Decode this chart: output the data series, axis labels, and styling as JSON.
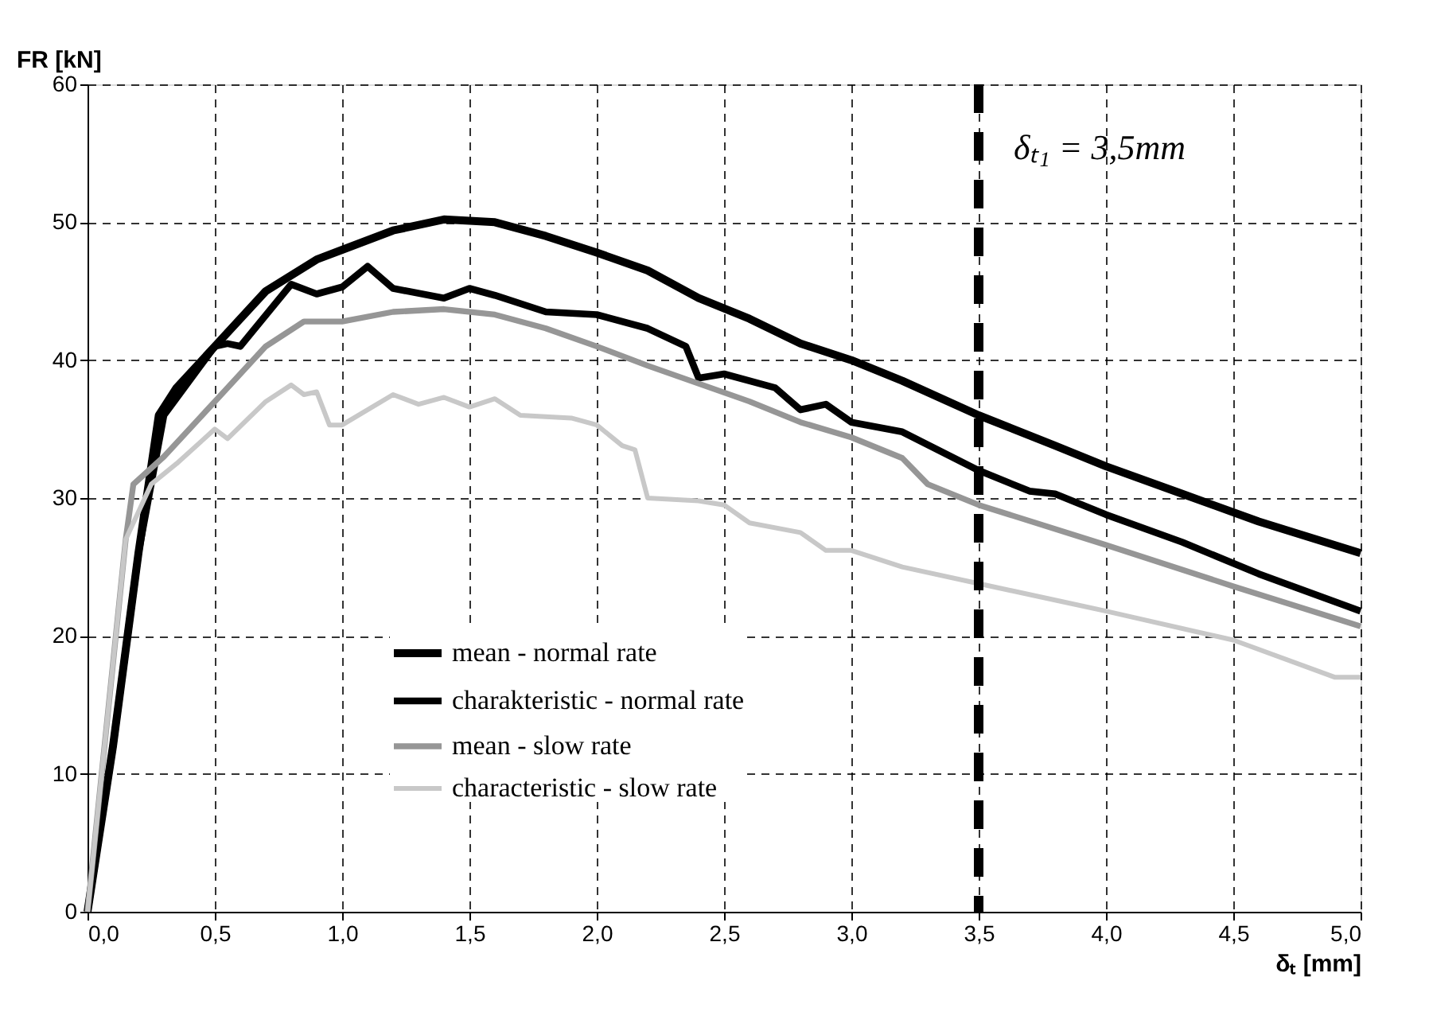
{
  "chart_data": {
    "type": "line",
    "xlabel": "δₜ [mm]",
    "ylabel": "FR [kN]",
    "xlim": [
      0,
      5
    ],
    "ylim": [
      0,
      60
    ],
    "xticks": [
      {
        "value": 0,
        "label": "0,0"
      },
      {
        "value": 0.5,
        "label": "0,5"
      },
      {
        "value": 1,
        "label": "1,0"
      },
      {
        "value": 1.5,
        "label": "1,5"
      },
      {
        "value": 2,
        "label": "2,0"
      },
      {
        "value": 2.5,
        "label": "2,5"
      },
      {
        "value": 3,
        "label": "3,0"
      },
      {
        "value": 3.5,
        "label": "3,5"
      },
      {
        "value": 4,
        "label": "4,0"
      },
      {
        "value": 4.5,
        "label": "4,5"
      },
      {
        "value": 5,
        "label": "5,0"
      }
    ],
    "yticks": [
      0,
      10,
      20,
      30,
      40,
      50,
      60
    ],
    "grid": true,
    "legend": "bottom left",
    "marker": "none",
    "line_style": "solid",
    "ref_lines": [
      {
        "axis": "x",
        "value": 3.5,
        "label": "δₜ₁ = 3,5mm",
        "color": "#000000",
        "line_style": "dashed"
      }
    ],
    "series": [
      {
        "name": "mean - normal rate",
        "color": "#000000",
        "x": [
          0,
          0.1,
          0.2,
          0.28,
          0.35,
          0.5,
          0.7,
          0.9,
          1.0,
          1.2,
          1.4,
          1.6,
          1.8,
          2.0,
          2.2,
          2.4,
          2.6,
          2.8,
          3.0,
          3.2,
          3.5,
          3.8,
          4.0,
          4.3,
          4.6,
          5.0
        ],
        "values": [
          0,
          12,
          26,
          36,
          38,
          41,
          45,
          47.3,
          48,
          49.4,
          50.2,
          50,
          49,
          47.8,
          46.5,
          44.5,
          43,
          41.2,
          40,
          38.5,
          36,
          33.8,
          32.3,
          30.3,
          28.3,
          26
        ]
      },
      {
        "name": "charakteristic - normal rate",
        "color": "#000000",
        "x": [
          0,
          0.1,
          0.2,
          0.3,
          0.5,
          0.55,
          0.6,
          0.8,
          0.9,
          1.0,
          1.1,
          1.2,
          1.4,
          1.5,
          1.6,
          1.8,
          2.0,
          2.2,
          2.35,
          2.4,
          2.5,
          2.7,
          2.8,
          2.9,
          3.0,
          3.2,
          3.5,
          3.7,
          3.8,
          4.0,
          4.3,
          4.6,
          5.0
        ],
        "values": [
          0,
          12,
          26,
          36,
          41,
          41.2,
          41,
          45.5,
          44.8,
          45.3,
          46.8,
          45.2,
          44.5,
          45.2,
          44.7,
          43.5,
          43.3,
          42.3,
          41,
          38.7,
          39,
          38,
          36.4,
          36.8,
          35.5,
          34.8,
          32,
          30.5,
          30.3,
          28.8,
          26.8,
          24.5,
          21.8
        ]
      },
      {
        "name": "mean - slow rate",
        "color": "#969696",
        "x": [
          0,
          0.15,
          0.18,
          0.3,
          0.5,
          0.7,
          0.85,
          1.0,
          1.2,
          1.4,
          1.6,
          1.8,
          2.0,
          2.2,
          2.4,
          2.6,
          2.8,
          3.0,
          3.2,
          3.3,
          3.5,
          4.0,
          4.5,
          5.0
        ],
        "values": [
          0,
          27,
          31,
          33,
          37,
          41,
          42.8,
          42.8,
          43.5,
          43.7,
          43.3,
          42.3,
          41,
          39.6,
          38.3,
          37,
          35.5,
          34.4,
          32.9,
          31,
          29.5,
          26.6,
          23.6,
          20.7
        ]
      },
      {
        "name": "characteristic - slow rate",
        "color": "#c8c8c8",
        "x": [
          0,
          0.15,
          0.25,
          0.35,
          0.5,
          0.55,
          0.7,
          0.8,
          0.85,
          0.9,
          0.95,
          1.0,
          1.2,
          1.3,
          1.4,
          1.5,
          1.6,
          1.7,
          1.9,
          2.0,
          2.1,
          2.15,
          2.2,
          2.4,
          2.5,
          2.6,
          2.8,
          2.9,
          3.0,
          3.2,
          3.5,
          3.8,
          4.0,
          4.5,
          4.9,
          5.0
        ],
        "values": [
          0,
          27,
          31,
          32.5,
          35,
          34.3,
          37,
          38.2,
          37.5,
          37.7,
          35.3,
          35.3,
          37.5,
          36.8,
          37.3,
          36.6,
          37.2,
          36,
          35.8,
          35.3,
          33.8,
          33.5,
          30,
          29.8,
          29.5,
          28.2,
          27.5,
          26.2,
          26.2,
          25,
          23.8,
          22.6,
          21.8,
          19.7,
          17,
          17
        ]
      }
    ]
  }
}
